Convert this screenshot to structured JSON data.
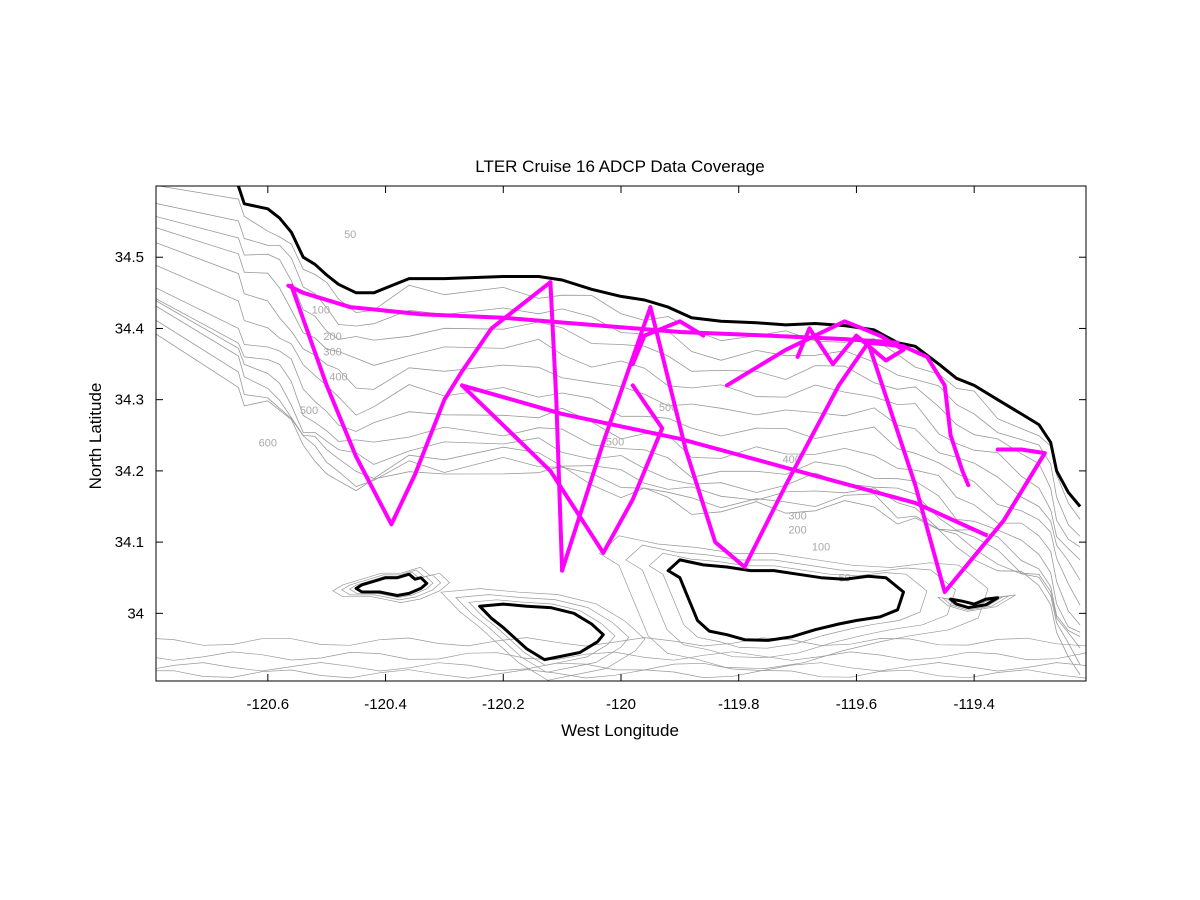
{
  "chart_data": {
    "type": "map-track",
    "title": "LTER Cruise 16 ADCP Data Coverage",
    "xlabel": "West Longitude",
    "ylabel": "North Latitude",
    "xlim": [
      -120.79,
      -119.21
    ],
    "ylim": [
      33.905,
      34.6
    ],
    "xticks": [
      {
        "value": -120.6,
        "label": "-120.6"
      },
      {
        "value": -120.4,
        "label": "-120.4"
      },
      {
        "value": -120.2,
        "label": "-120.2"
      },
      {
        "value": -120.0,
        "label": "-120"
      },
      {
        "value": -119.8,
        "label": "-119.8"
      },
      {
        "value": -119.6,
        "label": "-119.6"
      },
      {
        "value": -119.4,
        "label": "-119.4"
      }
    ],
    "yticks": [
      {
        "value": 34.0,
        "label": "34"
      },
      {
        "value": 34.1,
        "label": "34.1"
      },
      {
        "value": 34.2,
        "label": "34.2"
      },
      {
        "value": 34.3,
        "label": "34.3"
      },
      {
        "value": 34.4,
        "label": "34.4"
      },
      {
        "value": 34.5,
        "label": "34.5"
      }
    ],
    "colors": {
      "track": "#ff00ff",
      "coast": "#000000",
      "contour": "#9a9a9a",
      "contour_label": "#a8a8a8"
    },
    "contour_labels": [
      {
        "text": "50",
        "lon": -120.46,
        "lat": 34.527
      },
      {
        "text": "100",
        "lon": -120.51,
        "lat": 34.421
      },
      {
        "text": "200",
        "lon": -120.49,
        "lat": 34.384
      },
      {
        "text": "300",
        "lon": -120.49,
        "lat": 34.362
      },
      {
        "text": "400",
        "lon": -120.48,
        "lat": 34.327
      },
      {
        "text": "500",
        "lon": -120.53,
        "lat": 34.28
      },
      {
        "text": "600",
        "lon": -120.6,
        "lat": 34.234
      },
      {
        "text": "500",
        "lon": -119.92,
        "lat": 34.284
      },
      {
        "text": "500",
        "lon": -120.01,
        "lat": 34.236
      },
      {
        "text": "400",
        "lon": -119.71,
        "lat": 34.211
      },
      {
        "text": "300",
        "lon": -119.7,
        "lat": 34.132
      },
      {
        "text": "200",
        "lon": -119.7,
        "lat": 34.112
      },
      {
        "text": "100",
        "lon": -119.66,
        "lat": 34.088
      },
      {
        "text": "50",
        "lon": -119.62,
        "lat": 34.045
      }
    ],
    "coastline": [
      [
        -120.65,
        34.6
      ],
      [
        -120.64,
        34.575
      ],
      [
        -120.6,
        34.568
      ],
      [
        -120.58,
        34.555
      ],
      [
        -120.56,
        34.535
      ],
      [
        -120.54,
        34.5
      ],
      [
        -120.52,
        34.49
      ],
      [
        -120.5,
        34.475
      ],
      [
        -120.48,
        34.462
      ],
      [
        -120.45,
        34.45
      ],
      [
        -120.42,
        34.45
      ],
      [
        -120.36,
        34.47
      ],
      [
        -120.3,
        34.47
      ],
      [
        -120.2,
        34.473
      ],
      [
        -120.14,
        34.473
      ],
      [
        -120.1,
        34.468
      ],
      [
        -120.05,
        34.455
      ],
      [
        -120.0,
        34.445
      ],
      [
        -119.96,
        34.44
      ],
      [
        -119.92,
        34.43
      ],
      [
        -119.88,
        34.415
      ],
      [
        -119.83,
        34.41
      ],
      [
        -119.77,
        34.408
      ],
      [
        -119.72,
        34.405
      ],
      [
        -119.67,
        34.407
      ],
      [
        -119.62,
        34.404
      ],
      [
        -119.57,
        34.398
      ],
      [
        -119.53,
        34.38
      ],
      [
        -119.5,
        34.375
      ],
      [
        -119.46,
        34.35
      ],
      [
        -119.43,
        34.33
      ],
      [
        -119.4,
        34.32
      ],
      [
        -119.36,
        34.3
      ],
      [
        -119.32,
        34.28
      ],
      [
        -119.29,
        34.265
      ],
      [
        -119.27,
        34.24
      ],
      [
        -119.26,
        34.2
      ],
      [
        -119.24,
        34.17
      ],
      [
        -119.22,
        34.15
      ]
    ],
    "islands": [
      {
        "name": "San Miguel Island",
        "points": [
          [
            -120.44,
            34.04
          ],
          [
            -120.42,
            34.045
          ],
          [
            -120.4,
            34.05
          ],
          [
            -120.38,
            34.05
          ],
          [
            -120.36,
            34.055
          ],
          [
            -120.35,
            34.048
          ],
          [
            -120.34,
            34.05
          ],
          [
            -120.33,
            34.042
          ],
          [
            -120.34,
            34.035
          ],
          [
            -120.36,
            34.028
          ],
          [
            -120.38,
            34.025
          ],
          [
            -120.41,
            34.03
          ],
          [
            -120.44,
            34.03
          ],
          [
            -120.45,
            34.035
          ],
          [
            -120.44,
            34.04
          ]
        ]
      },
      {
        "name": "Santa Rosa Island",
        "points": [
          [
            -120.24,
            34.01
          ],
          [
            -120.2,
            34.013
          ],
          [
            -120.16,
            34.01
          ],
          [
            -120.12,
            34.008
          ],
          [
            -120.08,
            34.0
          ],
          [
            -120.05,
            33.985
          ],
          [
            -120.03,
            33.97
          ],
          [
            -120.04,
            33.96
          ],
          [
            -120.07,
            33.945
          ],
          [
            -120.1,
            33.94
          ],
          [
            -120.13,
            33.935
          ],
          [
            -120.16,
            33.95
          ],
          [
            -120.18,
            33.965
          ],
          [
            -120.2,
            33.98
          ],
          [
            -120.22,
            33.993
          ],
          [
            -120.24,
            34.01
          ]
        ]
      },
      {
        "name": "Santa Cruz Island",
        "points": [
          [
            -119.9,
            34.075
          ],
          [
            -119.86,
            34.068
          ],
          [
            -119.82,
            34.065
          ],
          [
            -119.78,
            34.06
          ],
          [
            -119.74,
            34.06
          ],
          [
            -119.7,
            34.055
          ],
          [
            -119.66,
            34.05
          ],
          [
            -119.62,
            34.048
          ],
          [
            -119.58,
            34.052
          ],
          [
            -119.55,
            34.05
          ],
          [
            -119.52,
            34.03
          ],
          [
            -119.53,
            34.005
          ],
          [
            -119.56,
            33.995
          ],
          [
            -119.6,
            33.99
          ],
          [
            -119.63,
            33.985
          ],
          [
            -119.67,
            33.977
          ],
          [
            -119.71,
            33.967
          ],
          [
            -119.75,
            33.962
          ],
          [
            -119.79,
            33.963
          ],
          [
            -119.82,
            33.97
          ],
          [
            -119.85,
            33.975
          ],
          [
            -119.87,
            33.99
          ],
          [
            -119.88,
            34.01
          ],
          [
            -119.89,
            34.03
          ],
          [
            -119.9,
            34.05
          ],
          [
            -119.92,
            34.06
          ],
          [
            -119.9,
            34.075
          ]
        ]
      },
      {
        "name": "Anacapa Island",
        "points": [
          [
            -119.44,
            34.02
          ],
          [
            -119.42,
            34.017
          ],
          [
            -119.4,
            34.013
          ],
          [
            -119.38,
            34.02
          ],
          [
            -119.36,
            34.022
          ],
          [
            -119.38,
            34.012
          ],
          [
            -119.41,
            34.008
          ],
          [
            -119.43,
            34.013
          ],
          [
            -119.44,
            34.02
          ]
        ]
      }
    ],
    "tracks": [
      [
        [
          -120.565,
          34.46
        ],
        [
          -120.54,
          34.45
        ],
        [
          -120.46,
          34.43
        ],
        [
          -120.34,
          34.42
        ],
        [
          -120.2,
          34.415
        ],
        [
          -120.05,
          34.405
        ],
        [
          -119.9,
          34.395
        ],
        [
          -119.75,
          34.39
        ],
        [
          -119.62,
          34.385
        ],
        [
          -119.53,
          34.38
        ]
      ],
      [
        [
          -120.56,
          34.46
        ],
        [
          -120.5,
          34.32
        ],
        [
          -120.45,
          34.22
        ],
        [
          -120.39,
          34.125
        ],
        [
          -120.35,
          34.195
        ],
        [
          -120.3,
          34.3
        ],
        [
          -120.27,
          34.34
        ],
        [
          -120.22,
          34.4
        ],
        [
          -120.12,
          34.465
        ]
      ],
      [
        [
          -120.12,
          34.465
        ],
        [
          -120.11,
          34.3
        ],
        [
          -120.1,
          34.06
        ]
      ],
      [
        [
          -120.27,
          34.32
        ],
        [
          -120.12,
          34.2
        ],
        [
          -120.03,
          34.085
        ]
      ],
      [
        [
          -120.1,
          34.06
        ],
        [
          -120.03,
          34.24
        ],
        [
          -119.95,
          34.43
        ]
      ],
      [
        [
          -120.03,
          34.085
        ],
        [
          -119.98,
          34.16
        ],
        [
          -119.93,
          34.26
        ],
        [
          -119.98,
          34.32
        ]
      ],
      [
        [
          -119.95,
          34.43
        ],
        [
          -119.89,
          34.23
        ],
        [
          -119.84,
          34.1
        ],
        [
          -119.79,
          34.065
        ],
        [
          -119.72,
          34.18
        ],
        [
          -119.63,
          34.32
        ],
        [
          -119.58,
          34.38
        ]
      ],
      [
        [
          -120.27,
          34.32
        ],
        [
          -120.1,
          34.28
        ],
        [
          -119.9,
          34.245
        ],
        [
          -119.7,
          34.2
        ],
        [
          -119.5,
          34.155
        ],
        [
          -119.38,
          34.11
        ]
      ],
      [
        [
          -119.58,
          34.38
        ],
        [
          -119.5,
          34.18
        ],
        [
          -119.45,
          34.03
        ],
        [
          -119.35,
          34.13
        ],
        [
          -119.28,
          34.225
        ],
        [
          -119.32,
          34.23
        ],
        [
          -119.36,
          34.23
        ]
      ],
      [
        [
          -119.58,
          34.38
        ],
        [
          -119.52,
          34.375
        ],
        [
          -119.48,
          34.36
        ],
        [
          -119.45,
          34.32
        ],
        [
          -119.44,
          34.25
        ],
        [
          -119.42,
          34.2
        ],
        [
          -119.41,
          34.18
        ]
      ],
      [
        [
          -119.82,
          34.32
        ],
        [
          -119.72,
          34.37
        ],
        [
          -119.62,
          34.41
        ],
        [
          -119.56,
          34.39
        ],
        [
          -119.52,
          34.37
        ],
        [
          -119.55,
          34.355
        ],
        [
          -119.6,
          34.39
        ],
        [
          -119.64,
          34.35
        ],
        [
          -119.68,
          34.4
        ],
        [
          -119.7,
          34.36
        ]
      ],
      [
        [
          -119.98,
          34.35
        ],
        [
          -119.96,
          34.39
        ],
        [
          -119.9,
          34.41
        ],
        [
          -119.86,
          34.39
        ]
      ]
    ]
  }
}
